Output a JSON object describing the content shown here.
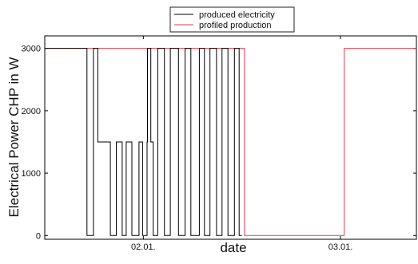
{
  "chart_data": {
    "type": "line",
    "title": "",
    "xlabel": "date",
    "ylabel": "Electrical Power CHP in W",
    "x_tick_labels": [
      "02.01.",
      "03.01."
    ],
    "y_tick_labels": [
      "0",
      "1000",
      "2000",
      "3000"
    ],
    "ylim": [
      -60,
      3200
    ],
    "xlim": [
      0,
      1.885
    ],
    "grid": false,
    "legend_position": "top-center",
    "colors": {
      "produced": "#000000",
      "profiled": "#e8384a",
      "axis": "#000000"
    },
    "series": [
      {
        "name": "produced electricity",
        "x": [
          0,
          0.214,
          0.214,
          0.247,
          0.247,
          0.269,
          0.269,
          0.333,
          0.333,
          0.363,
          0.363,
          0.393,
          0.393,
          0.413,
          0.413,
          0.442,
          0.442,
          0.478,
          0.478,
          0.496,
          0.496,
          0.519,
          0.519,
          0.521,
          0.521,
          0.538,
          0.538,
          0.55,
          0.55,
          0.573,
          0.573,
          0.607,
          0.607,
          0.637,
          0.637,
          0.678,
          0.678,
          0.712,
          0.712,
          0.741,
          0.741,
          0.784,
          0.784,
          0.81,
          0.81,
          0.838,
          0.838,
          0.871,
          0.871,
          0.899,
          0.899,
          0.929,
          0.929,
          0.962,
          0.962,
          0.986,
          0.986,
          1.0
        ],
        "y": [
          3000,
          3000,
          0,
          0,
          3000,
          3000,
          1500,
          1500,
          0,
          0,
          1500,
          1500,
          0,
          0,
          1500,
          1500,
          0,
          0,
          1500,
          1500,
          0,
          0,
          1500,
          1500,
          3000,
          3000,
          1500,
          1500,
          0,
          0,
          3000,
          3000,
          0,
          0,
          3000,
          3000,
          0,
          0,
          3000,
          3000,
          0,
          0,
          3000,
          3000,
          0,
          0,
          3000,
          3000,
          0,
          0,
          3000,
          3000,
          0,
          0,
          3000,
          3000,
          0,
          0
        ]
      },
      {
        "name": "profiled production",
        "x": [
          0,
          1.013,
          1.013,
          1.519,
          1.519,
          1.885
        ],
        "y": [
          3000,
          3000,
          0,
          0,
          3000,
          3000
        ]
      }
    ]
  }
}
